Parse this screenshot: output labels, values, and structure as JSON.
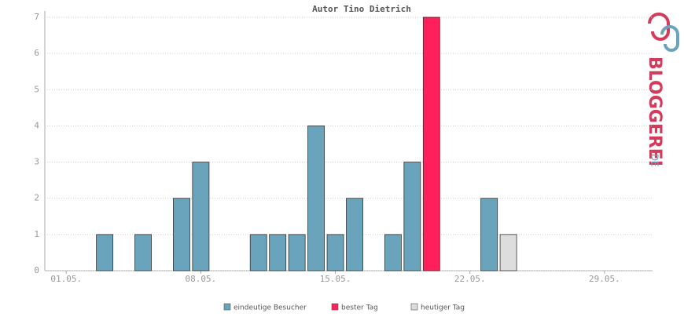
{
  "chart_data": {
    "type": "bar",
    "title": "Autor Tino Dietrich",
    "categories": [
      "01.05.",
      null,
      null,
      null,
      null,
      null,
      null,
      "08.05.",
      null,
      null,
      null,
      null,
      null,
      null,
      "15.05.",
      null,
      null,
      null,
      null,
      null,
      null,
      "22.05.",
      null,
      null,
      null,
      null,
      null,
      null,
      "29.05.",
      null,
      null
    ],
    "series": [
      {
        "name": "eindeutige Besucher",
        "color": "#6aa3bc",
        "values": [
          0,
          0,
          1,
          0,
          1,
          0,
          2,
          3,
          0,
          0,
          1,
          1,
          1,
          4,
          1,
          2,
          0,
          1,
          3,
          null,
          0,
          0,
          2,
          null,
          0,
          0,
          0,
          0,
          0,
          0,
          0
        ]
      },
      {
        "name": "bester Tag",
        "color": "#ff1f5a",
        "values": [
          null,
          null,
          null,
          null,
          null,
          null,
          null,
          null,
          null,
          null,
          null,
          null,
          null,
          null,
          null,
          null,
          null,
          null,
          null,
          7,
          null,
          null,
          null,
          null,
          null,
          null,
          null,
          null,
          null,
          null,
          null
        ]
      },
      {
        "name": "heutiger Tag",
        "color": "#dddddd",
        "values": [
          null,
          null,
          null,
          null,
          null,
          null,
          null,
          null,
          null,
          null,
          null,
          null,
          null,
          null,
          null,
          null,
          null,
          null,
          null,
          null,
          null,
          null,
          null,
          1,
          null,
          null,
          null,
          null,
          null,
          null,
          null
        ]
      }
    ],
    "ylim": [
      0,
      7
    ],
    "yticks": [
      0,
      1,
      2,
      3,
      4,
      5,
      6,
      7
    ],
    "grid": true
  },
  "logo": {
    "name": "BLOGGEREI",
    "suffix": ".DE"
  }
}
